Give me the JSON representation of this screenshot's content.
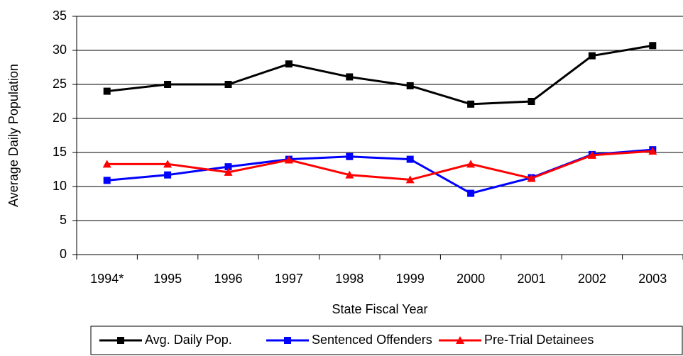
{
  "chart_data": {
    "type": "line",
    "x_label": "State Fiscal Year",
    "y_label": "Average Daily Population",
    "categories": [
      "1994*",
      "1995",
      "1996",
      "1997",
      "1998",
      "1999",
      "2000",
      "2001",
      "2002",
      "2003"
    ],
    "series": [
      {
        "name": "Avg. Daily Pop.",
        "color": "#000000",
        "marker": "square",
        "values": [
          24,
          25,
          25,
          28,
          26.1,
          24.8,
          22.1,
          22.5,
          29.2,
          30.7
        ]
      },
      {
        "name": "Sentenced Offenders",
        "color": "#0000ff",
        "marker": "square",
        "values": [
          10.9,
          11.7,
          12.9,
          14,
          14.4,
          14,
          9,
          11.3,
          14.7,
          15.4
        ]
      },
      {
        "name": "Pre-Trial Detainees",
        "color": "#ff0000",
        "marker": "triangle",
        "values": [
          13.3,
          13.3,
          12.1,
          13.9,
          11.7,
          11,
          13.3,
          11.2,
          14.6,
          15.2
        ]
      }
    ],
    "ylim": [
      0,
      35
    ],
    "yticks": [
      0,
      5,
      10,
      15,
      20,
      25,
      30,
      35
    ],
    "grid": true,
    "legend": "bottom"
  }
}
